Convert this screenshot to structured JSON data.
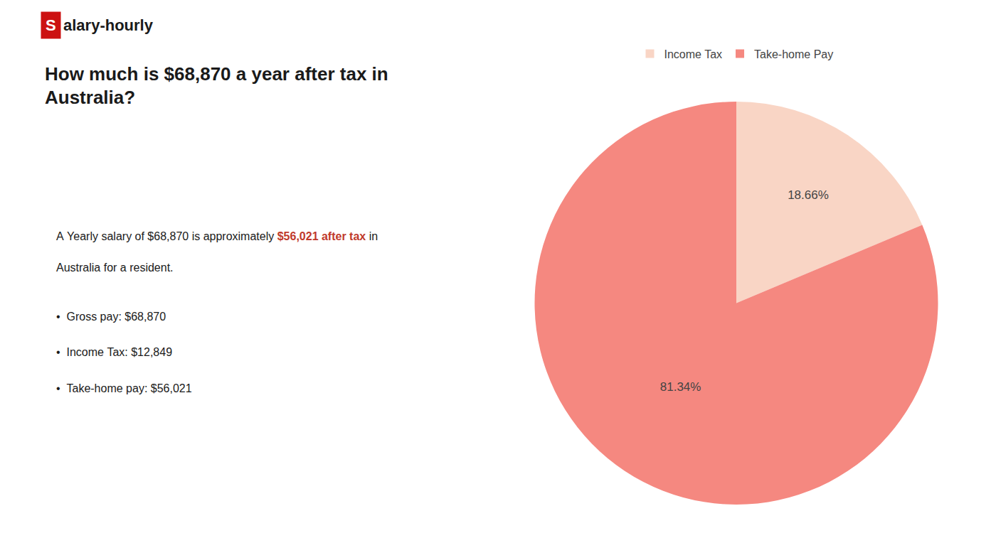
{
  "chart_data": {
    "type": "pie",
    "title": "How much is $68,870 a year after tax in\nAustralia?",
    "categories": [
      "Income Tax",
      "Take-home Pay"
    ],
    "values": [
      18.66,
      81.34
    ],
    "value_labels": [
      "18.66%",
      "81.34%"
    ],
    "colors": [
      "#f9d5c5",
      "#f58880"
    ],
    "data_labels": true,
    "legend": "top",
    "annotations": [
      [
        {
          "text": "S",
          "color": "#cc1111"
        },
        {
          "text": "alary-hourly"
        }
      ],
      [
        {
          "text": "A Yearly salary of $68,870 is approximately "
        },
        {
          "text": "$56,021 after tax",
          "color": "#c0392b"
        },
        {
          "text": " in"
        }
      ],
      [
        {
          "text": "Australia for a resident."
        }
      ],
      [
        {
          "text": "•  Gross pay: $68,870"
        }
      ],
      [
        {
          "text": "•  Income Tax: $12,849"
        }
      ],
      [
        {
          "text": "•  Take-home pay: $56,021"
        }
      ]
    ]
  }
}
